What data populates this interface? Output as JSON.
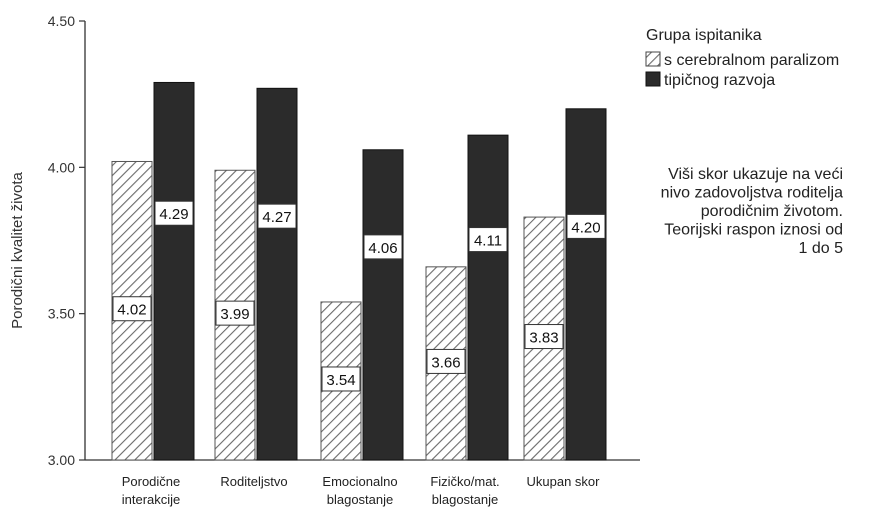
{
  "chart_data": {
    "type": "bar",
    "ylabel": "Porodični kvalitet života",
    "ylim": [
      3.0,
      4.5
    ],
    "yticks": [
      "3.00",
      "3.50",
      "4.00",
      "4.50"
    ],
    "ytick_values": [
      3.0,
      3.5,
      4.0,
      4.5
    ],
    "categories": [
      [
        "Porodične",
        "interakcije"
      ],
      [
        "Roditeljstvo"
      ],
      [
        "Emocionalno",
        "blagostanje"
      ],
      [
        "Fizičko/mat.",
        "blagostanje"
      ],
      [
        "Ukupan skor"
      ]
    ],
    "legend_title": "Grupa ispitanika",
    "series": [
      {
        "name": "s cerebralnom paralizom",
        "values": [
          4.02,
          3.99,
          3.54,
          3.66,
          3.83
        ],
        "labels": [
          "4.02",
          "3.99",
          "3.54",
          "3.66",
          "3.83"
        ],
        "pattern": "hatched"
      },
      {
        "name": "tipičnog razvoja",
        "values": [
          4.29,
          4.27,
          4.06,
          4.11,
          4.2
        ],
        "labels": [
          "4.29",
          "4.27",
          "4.06",
          "4.11",
          "4.20"
        ],
        "pattern": "solid",
        "color": "#2b2b2b"
      }
    ],
    "annotation": [
      "Viši skor ukazuje na veći",
      "nivo zadovoljstva roditelja",
      "porodičnim životom.",
      "Teorijski raspon iznosi od",
      "1 do 5"
    ],
    "grid": false,
    "legend_position": "top-right"
  }
}
